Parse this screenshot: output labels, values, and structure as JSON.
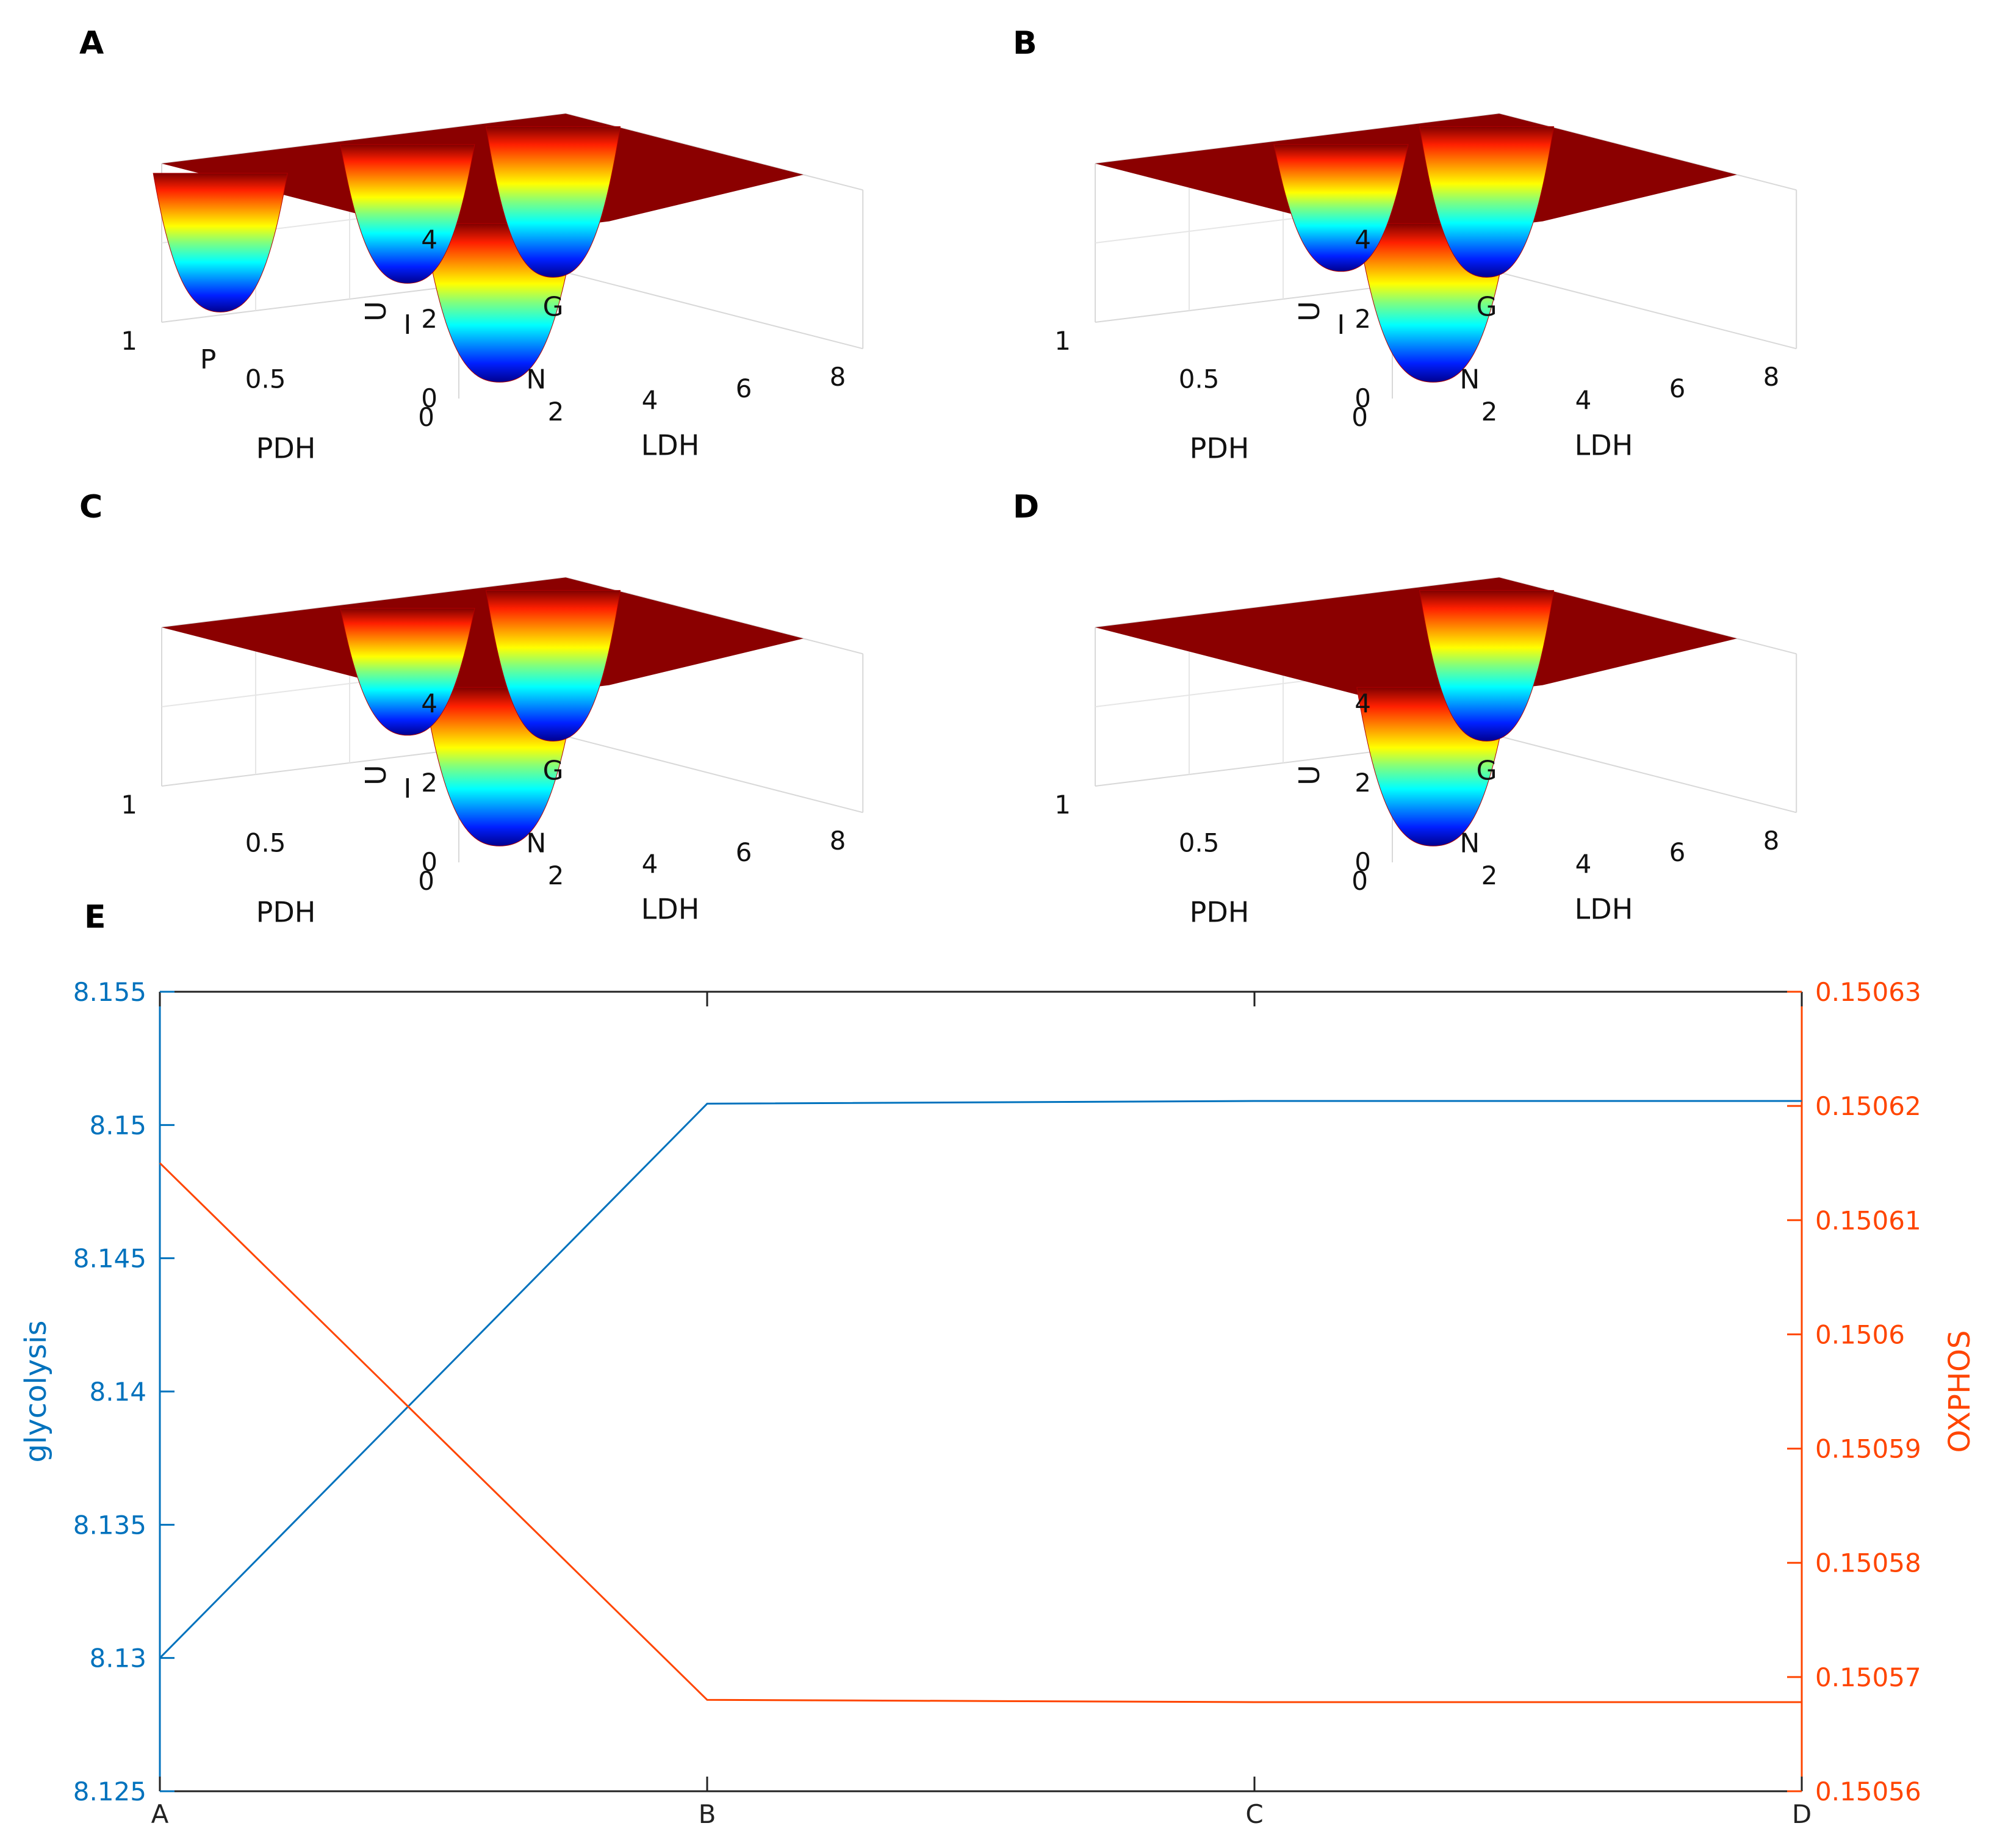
{
  "chart_data": [
    {
      "type": "surface",
      "panel": "A",
      "zlabel": "U",
      "xlabel": "LDH",
      "ylabel": "PDH",
      "zticks": [
        "0",
        "2",
        "4"
      ],
      "xticks": [
        "2",
        "4",
        "6",
        "8"
      ],
      "yticks": [
        "0",
        "0.5",
        "1"
      ],
      "zlim": [
        0,
        4
      ],
      "basins": [
        {
          "label": "P",
          "ldh": 0.3,
          "pdh": 0.85,
          "depth": 0.5
        },
        {
          "label": "N",
          "ldh": 1.5,
          "pdh": 0.1,
          "depth": 0.0
        },
        {
          "label": "I",
          "ldh": 4.6,
          "pdh": 0.9,
          "depth": 0.5
        },
        {
          "label": "G",
          "ldh": 7.7,
          "pdh": 0.9,
          "depth": 0.2
        }
      ]
    },
    {
      "type": "surface",
      "panel": "B",
      "zlabel": "U",
      "xlabel": "LDH",
      "ylabel": "PDH",
      "zticks": [
        "0",
        "2",
        "4"
      ],
      "xticks": [
        "2",
        "4",
        "6",
        "8"
      ],
      "yticks": [
        "0",
        "0.5",
        "1"
      ],
      "zlim": [
        0,
        4
      ],
      "basins": [
        {
          "label": "N",
          "ldh": 1.5,
          "pdh": 0.1,
          "depth": 0.0
        },
        {
          "label": "I",
          "ldh": 4.6,
          "pdh": 0.9,
          "depth": 0.8
        },
        {
          "label": "G",
          "ldh": 7.7,
          "pdh": 0.9,
          "depth": 0.2
        }
      ]
    },
    {
      "type": "surface",
      "panel": "C",
      "zlabel": "U",
      "xlabel": "LDH",
      "ylabel": "PDH",
      "zticks": [
        "0",
        "2",
        "4"
      ],
      "xticks": [
        "2",
        "4",
        "6",
        "8"
      ],
      "yticks": [
        "0",
        "0.5",
        "1"
      ],
      "zlim": [
        0,
        4
      ],
      "basins": [
        {
          "label": "N",
          "ldh": 1.5,
          "pdh": 0.1,
          "depth": 0.0
        },
        {
          "label": "I",
          "ldh": 4.6,
          "pdh": 0.9,
          "depth": 0.8
        },
        {
          "label": "G",
          "ldh": 7.7,
          "pdh": 0.9,
          "depth": 0.2
        }
      ]
    },
    {
      "type": "surface",
      "panel": "D",
      "zlabel": "U",
      "xlabel": "LDH",
      "ylabel": "PDH",
      "zticks": [
        "0",
        "2",
        "4"
      ],
      "xticks": [
        "2",
        "4",
        "6",
        "8"
      ],
      "yticks": [
        "0",
        "0.5",
        "1"
      ],
      "zlim": [
        0,
        4
      ],
      "basins": [
        {
          "label": "N",
          "ldh": 1.5,
          "pdh": 0.1,
          "depth": 0.0
        },
        {
          "label": "G",
          "ldh": 7.7,
          "pdh": 0.9,
          "depth": 0.2
        }
      ]
    },
    {
      "type": "line",
      "panel": "E",
      "categories": [
        "A",
        "B",
        "C",
        "D"
      ],
      "series": [
        {
          "name": "glycolysis",
          "axis": "left",
          "color": "#0072BD",
          "values": [
            8.13,
            8.1508,
            8.1509,
            8.1509
          ]
        },
        {
          "name": "OXPHOS",
          "axis": "right",
          "color": "#FF4500",
          "values": [
            0.150615,
            0.150568,
            0.1505678,
            0.1505678
          ]
        }
      ],
      "ylabel_left": "glycolysis",
      "ylabel_right": "OXPHOS",
      "ylim_left": [
        8.125,
        8.155
      ],
      "ylim_right": [
        0.15056,
        0.15063
      ],
      "yticks_left": [
        "8.125",
        "8.13",
        "8.135",
        "8.14",
        "8.145",
        "8.15",
        "8.155"
      ],
      "yticks_right": [
        "0.15056",
        "0.15057",
        "0.15058",
        "0.15059",
        "0.1506",
        "0.15061",
        "0.15062",
        "0.15063"
      ],
      "left_color": "#0072BD",
      "right_color": "#FF4500"
    }
  ]
}
